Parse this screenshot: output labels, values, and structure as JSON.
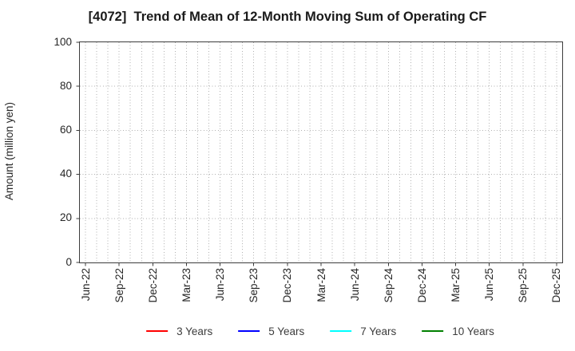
{
  "figure": {
    "title": "[4072]  Trend of Mean of 12-Month Moving Sum of Operating CF"
  },
  "y_axis": {
    "label": "Amount (million yen)",
    "ticks": [
      0,
      20,
      40,
      60,
      80,
      100
    ],
    "min": 0,
    "max": 100
  },
  "x_axis": {
    "tick_labels": [
      "Jun-22",
      "Sep-22",
      "Dec-22",
      "Mar-23",
      "Jun-23",
      "Sep-23",
      "Dec-23",
      "Mar-24",
      "Jun-24",
      "Sep-24",
      "Dec-24",
      "Mar-25",
      "Jun-25",
      "Sep-25",
      "Dec-25"
    ],
    "months_per_labeled_tick": 3,
    "total_month_slots": 43
  },
  "legend": {
    "items": [
      {
        "label": "3 Years",
        "color": "#ff0000"
      },
      {
        "label": "5 Years",
        "color": "#0000ff"
      },
      {
        "label": "7 Years",
        "color": "#00ffff"
      },
      {
        "label": "10 Years",
        "color": "#008000"
      }
    ]
  },
  "colors": {
    "grid": "#b0b0b0",
    "spine": "#3c3c3c",
    "tick_text": "#262626",
    "title_text": "#1a1a1a",
    "background": "#ffffff"
  },
  "chart_data": {
    "type": "line",
    "title": "[4072]  Trend of Mean of 12-Month Moving Sum of Operating CF",
    "xlabel": "",
    "ylabel": "Amount (million yen)",
    "ylim": [
      0,
      100
    ],
    "y_ticks": [
      0,
      20,
      40,
      60,
      80,
      100
    ],
    "x_tick_labels": [
      "Jun-22",
      "Sep-22",
      "Dec-22",
      "Mar-23",
      "Jun-23",
      "Sep-23",
      "Dec-23",
      "Mar-24",
      "Jun-24",
      "Sep-24",
      "Dec-24",
      "Mar-25",
      "Jun-25",
      "Sep-25",
      "Dec-25"
    ],
    "grid": "on, dotted, monthly vertical lines and horizontal lines every 20 units",
    "legend_position": "bottom center, outside axes",
    "series": [
      {
        "name": "3 Years",
        "color": "#ff0000",
        "x": [],
        "values": []
      },
      {
        "name": "5 Years",
        "color": "#0000ff",
        "x": [],
        "values": []
      },
      {
        "name": "7 Years",
        "color": "#00ffff",
        "x": [],
        "values": []
      },
      {
        "name": "10 Years",
        "color": "#008000",
        "x": [],
        "values": []
      }
    ],
    "note": "Axes and grid are rendered but no data points are plotted for any series."
  }
}
